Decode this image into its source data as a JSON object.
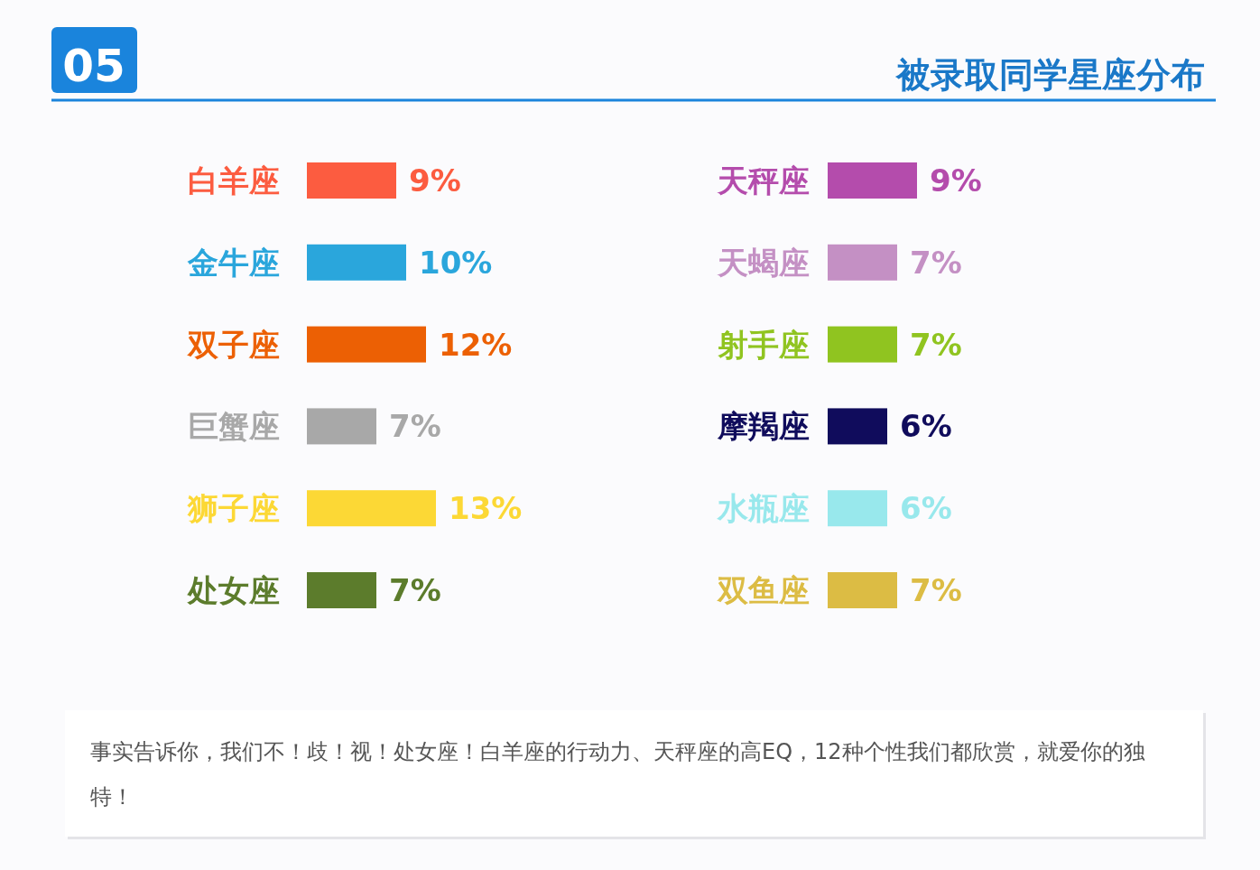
{
  "chart_data": [
    {
      "type": "bar",
      "orientation": "horizontal",
      "annotations": [
        "05",
        "事实告诉你，我们不！歧！视！处女座！白羊座的行动力、天秤座的高EQ，12种个性我们都欣赏，就爱你的独特！"
      ],
      "categories": [
        "白羊座",
        "金牛座",
        "双子座",
        "巨蟹座",
        "狮子座",
        "处女座"
      ],
      "values": [
        9,
        10,
        12,
        7,
        13,
        7
      ],
      "value_labels": [
        "9%",
        "10%",
        "12%",
        "7%",
        "13%",
        "7%"
      ],
      "colors": [
        "#fc5c40",
        "#2aa6dc",
        "#ec6004",
        "#a8a8a8",
        "#fcd835",
        "#5c7c2c"
      ]
    },
    {
      "type": "bar",
      "orientation": "horizontal",
      "title": "被录取同学星座分布",
      "categories": [
        "天秤座",
        "天蝎座",
        "射手座",
        "摩羯座",
        "水瓶座",
        "双鱼座"
      ],
      "values": [
        9,
        7,
        7,
        6,
        6,
        7
      ],
      "value_labels": [
        "9%",
        "7%",
        "7%",
        "6%",
        "6%",
        "7%"
      ],
      "colors": [
        "#b44cac",
        "#c490c4",
        "#90c420",
        "#100c5c",
        "#98e8ec",
        "#dcbc44"
      ]
    }
  ]
}
